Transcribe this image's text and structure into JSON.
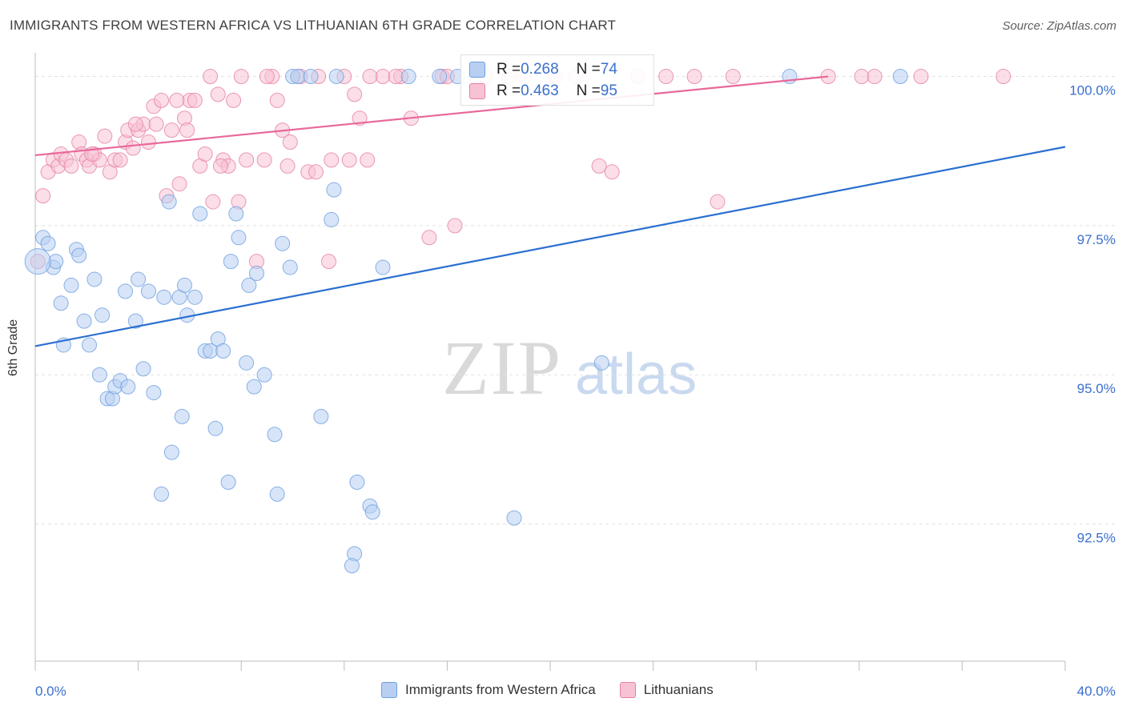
{
  "title": "IMMIGRANTS FROM WESTERN AFRICA VS LITHUANIAN 6TH GRADE CORRELATION CHART",
  "source": "Source: ZipAtlas.com",
  "watermark": {
    "zip": "ZIP",
    "atlas": "atlas"
  },
  "colors": {
    "blue": "#6d9ee0",
    "blue_fill": "#b8cff2",
    "blue_line": "#2b6fd0",
    "pink": "#e67fa2",
    "pink_fill": "#f7c3d4",
    "pink_line": "#e8689a",
    "tick_label": "#3a6fcf",
    "grid": "#e2e2e2"
  },
  "legend_top": {
    "rows": [
      {
        "r_label": "R = ",
        "r_value": "0.268",
        "n_label": "N = ",
        "n_value": "74",
        "color": "#b8cff2"
      },
      {
        "r_label": "R = ",
        "r_value": "0.463",
        "n_label": "N = ",
        "n_value": "95",
        "color": "#f7c3d4"
      }
    ]
  },
  "legend_bottom": {
    "items": [
      {
        "label": "Immigrants from Western Africa",
        "color": "#b8cff2"
      },
      {
        "label": "Lithuanians",
        "color": "#f7c3d4"
      }
    ]
  },
  "chart_data": {
    "type": "scatter",
    "title": "IMMIGRANTS FROM WESTERN AFRICA VS LITHUANIAN 6TH GRADE CORRELATION CHART",
    "xlabel": "",
    "ylabel": "6th Grade",
    "xlim": [
      0,
      40
    ],
    "ylim": [
      90.2,
      100.45
    ],
    "x_tick_labels": [
      "0.0%",
      "40.0%"
    ],
    "y_ticks": [
      92.5,
      95.0,
      97.5,
      100.0
    ],
    "y_tick_labels": [
      "92.5%",
      "95.0%",
      "97.5%",
      "100.0%"
    ],
    "grid": true,
    "legend_placement": "bottom",
    "series": [
      {
        "name": "Immigrants from Western Africa",
        "r": 0.268,
        "n": 74,
        "trend": {
          "x": [
            0,
            40
          ],
          "y": [
            95.48,
            98.82
          ]
        },
        "points": [
          [
            0.3,
            97.3
          ],
          [
            0.5,
            97.2
          ],
          [
            0.7,
            96.8
          ],
          [
            0.8,
            96.9
          ],
          [
            1.0,
            96.2
          ],
          [
            1.1,
            95.5
          ],
          [
            1.4,
            96.5
          ],
          [
            1.6,
            97.1
          ],
          [
            1.7,
            97.0
          ],
          [
            1.9,
            95.9
          ],
          [
            2.1,
            95.5
          ],
          [
            2.3,
            96.6
          ],
          [
            2.5,
            95.0
          ],
          [
            2.6,
            96.0
          ],
          [
            2.8,
            94.6
          ],
          [
            3.0,
            94.6
          ],
          [
            3.1,
            94.8
          ],
          [
            3.3,
            94.9
          ],
          [
            3.5,
            96.4
          ],
          [
            3.6,
            94.8
          ],
          [
            3.9,
            95.9
          ],
          [
            4.0,
            96.6
          ],
          [
            4.2,
            95.1
          ],
          [
            4.4,
            96.4
          ],
          [
            4.6,
            94.7
          ],
          [
            4.9,
            93.0
          ],
          [
            5.0,
            96.3
          ],
          [
            5.2,
            97.9
          ],
          [
            5.3,
            93.7
          ],
          [
            5.6,
            96.3
          ],
          [
            5.7,
            94.3
          ],
          [
            5.8,
            96.5
          ],
          [
            5.9,
            96.0
          ],
          [
            6.2,
            96.3
          ],
          [
            6.4,
            97.7
          ],
          [
            6.6,
            95.4
          ],
          [
            6.8,
            95.4
          ],
          [
            7.0,
            94.1
          ],
          [
            7.1,
            95.6
          ],
          [
            7.3,
            95.4
          ],
          [
            7.5,
            93.2
          ],
          [
            7.6,
            96.9
          ],
          [
            7.8,
            97.7
          ],
          [
            7.9,
            97.3
          ],
          [
            8.2,
            95.2
          ],
          [
            8.3,
            96.5
          ],
          [
            8.5,
            94.8
          ],
          [
            8.6,
            96.7
          ],
          [
            8.9,
            95.0
          ],
          [
            9.3,
            94.0
          ],
          [
            9.4,
            93.0
          ],
          [
            9.6,
            97.2
          ],
          [
            9.9,
            96.8
          ],
          [
            10.0,
            100.0
          ],
          [
            10.2,
            100.0
          ],
          [
            10.7,
            100.0
          ],
          [
            11.1,
            94.3
          ],
          [
            11.5,
            97.6
          ],
          [
            11.6,
            98.1
          ],
          [
            11.7,
            100.0
          ],
          [
            12.4,
            92.0
          ],
          [
            12.3,
            91.8
          ],
          [
            12.5,
            93.2
          ],
          [
            13.0,
            92.8
          ],
          [
            13.1,
            92.7
          ],
          [
            13.5,
            96.8
          ],
          [
            14.5,
            100.0
          ],
          [
            15.7,
            100.0
          ],
          [
            16.4,
            100.0
          ],
          [
            18.6,
            92.6
          ],
          [
            22.0,
            95.2
          ],
          [
            29.3,
            100.0
          ],
          [
            33.6,
            100.0
          ],
          [
            0.1,
            96.9
          ]
        ]
      },
      {
        "name": "Lithuanians",
        "r": 0.463,
        "n": 95,
        "trend": {
          "x": [
            0,
            30.8
          ],
          "y": [
            98.68,
            100.0
          ]
        },
        "points": [
          [
            0.3,
            98.0
          ],
          [
            0.5,
            98.4
          ],
          [
            0.7,
            98.6
          ],
          [
            0.9,
            98.5
          ],
          [
            1.0,
            98.7
          ],
          [
            1.2,
            98.6
          ],
          [
            1.4,
            98.5
          ],
          [
            1.7,
            98.9
          ],
          [
            1.8,
            98.7
          ],
          [
            2.0,
            98.6
          ],
          [
            2.1,
            98.5
          ],
          [
            2.3,
            98.7
          ],
          [
            2.5,
            98.6
          ],
          [
            2.7,
            99.0
          ],
          [
            2.9,
            98.4
          ],
          [
            3.1,
            98.6
          ],
          [
            3.3,
            98.6
          ],
          [
            3.5,
            98.9
          ],
          [
            3.6,
            99.1
          ],
          [
            3.8,
            98.8
          ],
          [
            4.0,
            99.1
          ],
          [
            4.2,
            99.2
          ],
          [
            4.4,
            98.9
          ],
          [
            4.6,
            99.5
          ],
          [
            4.7,
            99.2
          ],
          [
            4.9,
            99.6
          ],
          [
            5.1,
            98.0
          ],
          [
            5.3,
            99.1
          ],
          [
            5.6,
            98.2
          ],
          [
            5.8,
            99.3
          ],
          [
            5.9,
            99.1
          ],
          [
            6.0,
            99.6
          ],
          [
            6.2,
            99.6
          ],
          [
            6.4,
            98.5
          ],
          [
            6.6,
            98.7
          ],
          [
            6.9,
            97.9
          ],
          [
            7.1,
            99.7
          ],
          [
            7.3,
            98.6
          ],
          [
            7.5,
            98.5
          ],
          [
            7.7,
            99.6
          ],
          [
            7.9,
            97.9
          ],
          [
            8.2,
            98.6
          ],
          [
            8.6,
            96.9
          ],
          [
            8.9,
            98.6
          ],
          [
            9.2,
            100.0
          ],
          [
            9.4,
            99.6
          ],
          [
            9.6,
            99.1
          ],
          [
            9.9,
            98.9
          ],
          [
            10.3,
            100.0
          ],
          [
            10.6,
            98.4
          ],
          [
            10.9,
            98.4
          ],
          [
            11.4,
            96.9
          ],
          [
            11.5,
            98.6
          ],
          [
            12.0,
            100.0
          ],
          [
            12.4,
            99.7
          ],
          [
            12.6,
            99.3
          ],
          [
            12.9,
            98.6
          ],
          [
            13.5,
            100.0
          ],
          [
            14.2,
            100.0
          ],
          [
            14.6,
            99.3
          ],
          [
            15.3,
            97.3
          ],
          [
            15.8,
            100.0
          ],
          [
            16.3,
            97.5
          ],
          [
            17.1,
            100.0
          ],
          [
            18.4,
            100.0
          ],
          [
            19.0,
            100.0
          ],
          [
            20.2,
            100.0
          ],
          [
            21.0,
            100.0
          ],
          [
            21.9,
            98.5
          ],
          [
            22.4,
            98.4
          ],
          [
            23.4,
            100.0
          ],
          [
            24.5,
            100.0
          ],
          [
            25.6,
            100.0
          ],
          [
            26.5,
            97.9
          ],
          [
            27.1,
            100.0
          ],
          [
            30.8,
            100.0
          ],
          [
            32.1,
            100.0
          ],
          [
            32.6,
            100.0
          ],
          [
            34.4,
            100.0
          ],
          [
            37.6,
            100.0
          ],
          [
            6.8,
            100.0
          ],
          [
            8.0,
            100.0
          ],
          [
            9.0,
            100.0
          ],
          [
            11.0,
            100.0
          ],
          [
            13.0,
            100.0
          ],
          [
            16.0,
            100.0
          ],
          [
            0.1,
            96.9
          ],
          [
            2.2,
            98.7
          ],
          [
            3.9,
            99.2
          ],
          [
            5.5,
            99.6
          ],
          [
            7.2,
            98.5
          ],
          [
            9.8,
            98.5
          ],
          [
            12.2,
            98.6
          ],
          [
            14.0,
            100.0
          ],
          [
            17.5,
            100.0
          ]
        ]
      }
    ]
  }
}
